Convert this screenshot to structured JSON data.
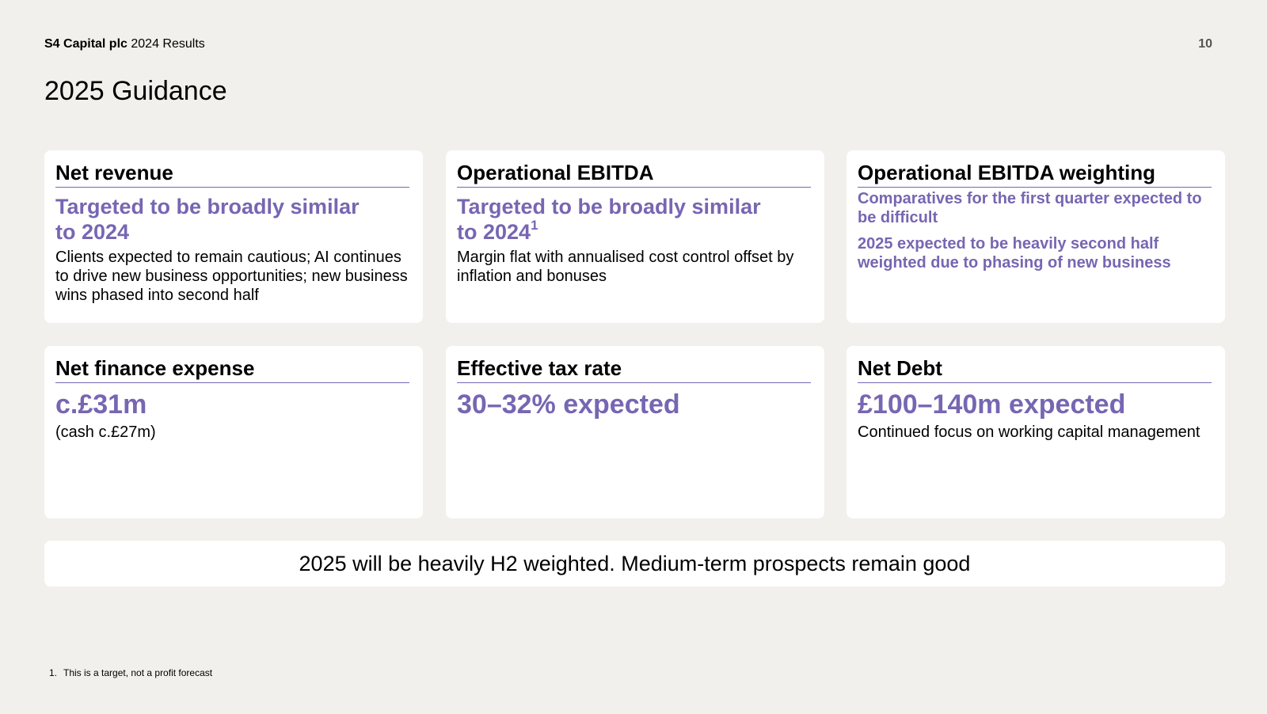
{
  "header": {
    "company": "S4 Capital plc",
    "report": "2024 Results",
    "page_number": "10"
  },
  "title": "2025 Guidance",
  "cards": {
    "net_revenue": {
      "heading": "Net revenue",
      "highlight_line1": "Targeted to be broadly similar",
      "highlight_line2": "to 2024",
      "body": "Clients expected to remain cautious; AI continues to drive new business opportunities; new business wins phased into second half"
    },
    "operational_ebitda": {
      "heading": "Operational EBITDA",
      "highlight_line1": "Targeted to be broadly similar",
      "highlight_line2": "to 2024",
      "footnote_marker": "1",
      "body": "Margin flat with annualised cost control offset by inflation and bonuses"
    },
    "ebitda_weighting": {
      "heading": "Operational EBITDA weighting",
      "point1": "Comparatives for the first quarter expected to be difficult",
      "point2": "2025 expected to be heavily second half weighted due to phasing of new business"
    },
    "net_finance_expense": {
      "heading": "Net finance expense",
      "highlight": "c.£31m",
      "body": "(cash c.£27m)"
    },
    "effective_tax_rate": {
      "heading": "Effective tax rate",
      "highlight": "30–32% expected"
    },
    "net_debt": {
      "heading": "Net Debt",
      "highlight": "£100–140m expected",
      "body": "Continued focus on working capital management"
    }
  },
  "banner": "2025 will be heavily H2 weighted. Medium-term prospects remain good",
  "footnote": {
    "number": "1.",
    "text": "This is a target, not a profit forecast"
  },
  "colors": {
    "background": "#f2f0ec",
    "card": "#ffffff",
    "accent": "#7766b2"
  }
}
